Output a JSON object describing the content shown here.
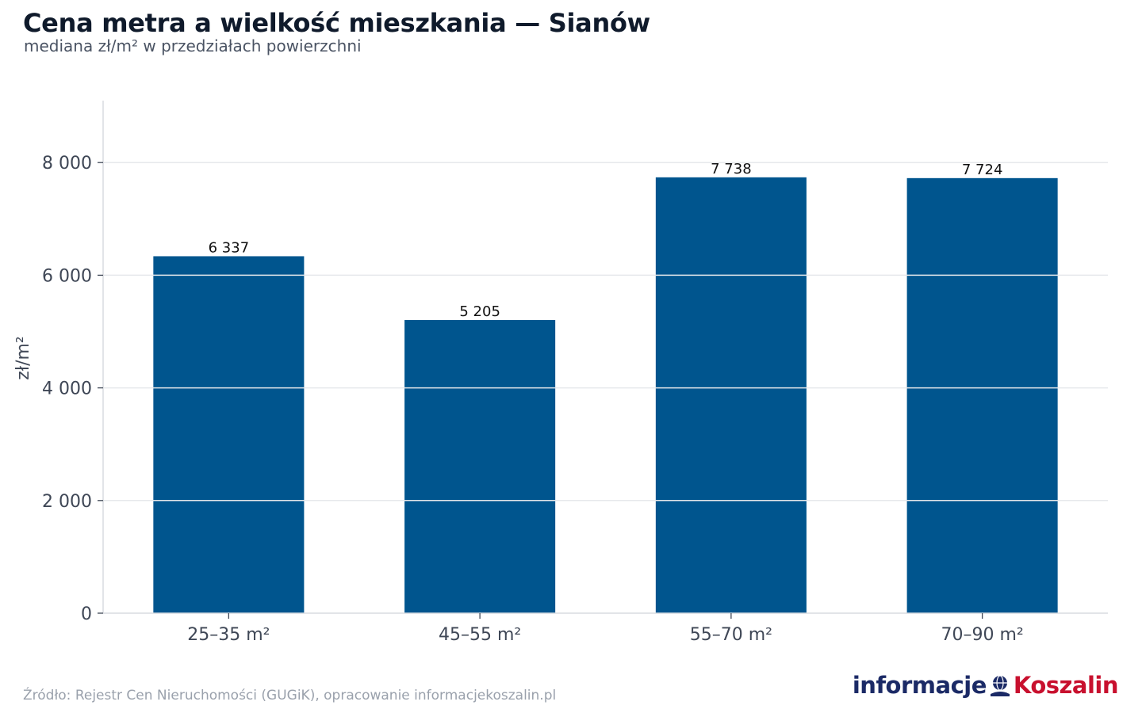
{
  "header": {
    "title": "Cena metra a wielkość mieszkania — Sianów",
    "subtitle": "mediana zł/m² w przedziałach powierzchni"
  },
  "footer": {
    "source": "Źródło: Rejestr Cen Nieruchomości (GUGiK), opracowanie informacjekoszalin.pl"
  },
  "logo": {
    "part1": "informacje",
    "part2": "Koszalin",
    "icon": "globe-emblem-icon"
  },
  "colors": {
    "bar": "#00558e",
    "grid": "#e6e8eb",
    "axis": "#d9dce0",
    "text": "#3f4756",
    "label": "#111111",
    "logo_primary": "#1b2a66",
    "logo_accent": "#c8102e"
  },
  "chart_data": {
    "type": "bar",
    "title": "Cena metra a wielkość mieszkania — Sianów",
    "subtitle": "mediana zł/m² w przedziałach powierzchni",
    "categories": [
      "25–35 m²",
      "45–55 m²",
      "55–70 m²",
      "70–90 m²"
    ],
    "values": [
      6337,
      5205,
      7738,
      7724
    ],
    "value_labels": [
      "6 337",
      "5 205",
      "7 738",
      "7 724"
    ],
    "xlabel": "",
    "ylabel": "zł/m²",
    "ylim": [
      0,
      9100
    ],
    "yticks": [
      0,
      2000,
      4000,
      6000,
      8000
    ],
    "ytick_labels": [
      "0",
      "2 000",
      "4 000",
      "6 000",
      "8 000"
    ],
    "grid": true,
    "legend": "none"
  }
}
